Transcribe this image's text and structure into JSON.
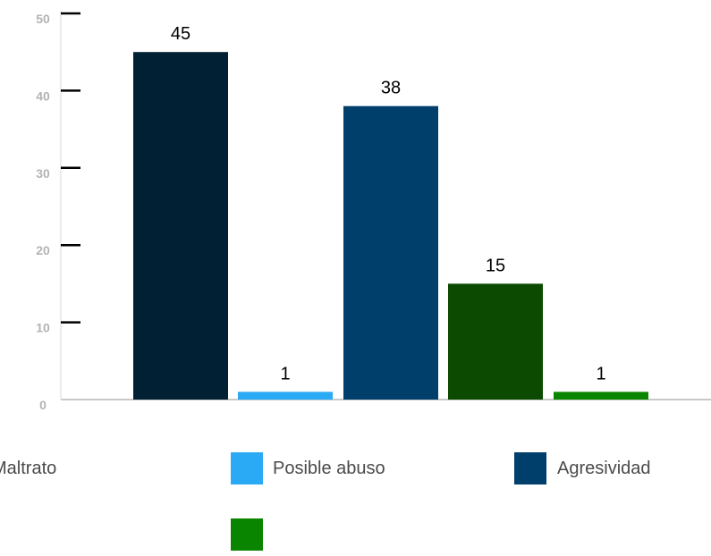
{
  "chart_data": {
    "type": "bar",
    "ylim": [
      0,
      50
    ],
    "yticks": [
      0,
      10,
      20,
      30,
      40,
      50
    ],
    "grid": false,
    "legend_position": "bottom",
    "bars": [
      {
        "series": "Maltrato",
        "value": 45,
        "label": "45",
        "color": "#022033"
      },
      {
        "series": "Posible abuso",
        "value": 1,
        "label": "1",
        "color": "#2aa9f5"
      },
      {
        "series": "Agresividad",
        "value": 38,
        "label": "38",
        "color": "#003e6b"
      },
      {
        "series": "",
        "value": 15,
        "label": "15",
        "color": "#0b4a00"
      },
      {
        "series": "",
        "value": 1,
        "label": "1",
        "color": "#0a8500"
      }
    ],
    "legend": [
      {
        "label": "Maltrato",
        "color": "#022033"
      },
      {
        "label": "Posible abuso",
        "color": "#2aa9f5"
      },
      {
        "label": "Agresividad",
        "color": "#003e6b"
      },
      {
        "label": "",
        "color": "#0a8500"
      }
    ]
  }
}
